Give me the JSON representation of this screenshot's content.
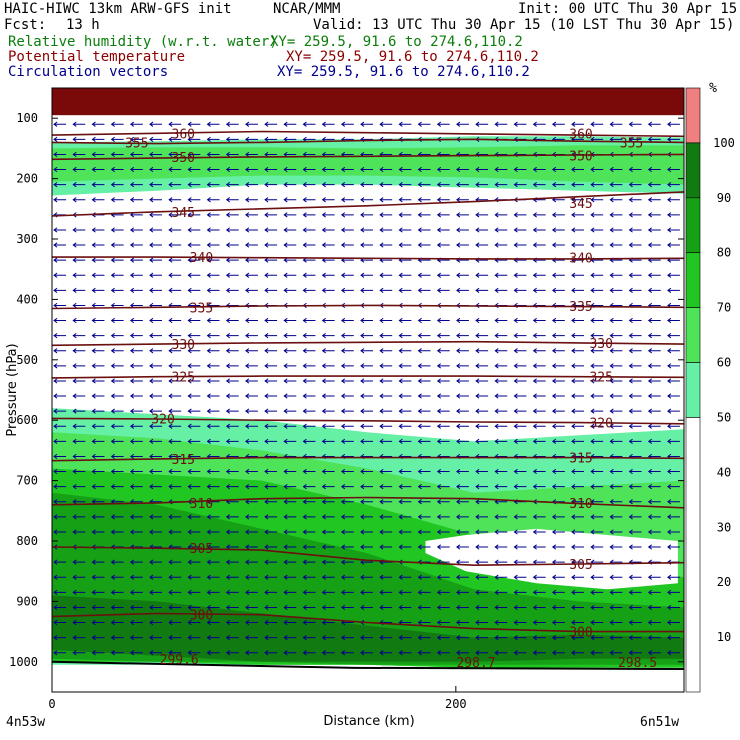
{
  "header": {
    "model": "HAIC-HIWC 13km ARW-GFS init",
    "center": "NCAR/MMM",
    "init": "Init: 00 UTC Thu 30 Apr 15",
    "fcst_label": "Fcst:",
    "fcst_value": "13 h",
    "valid": "Valid: 13 UTC Thu 30 Apr 15 (10 LST Thu 30 Apr 15)",
    "fields": [
      {
        "name": "Relative humidity (w.r.t. water)",
        "xy": "XY= 259.5, 91.6 to 274.6,110.2",
        "color": "#0b7d0b"
      },
      {
        "name": "Potential temperature",
        "xy": "XY= 259.5, 91.6 to 274.6,110.2",
        "color": "#8b0000"
      },
      {
        "name": "Circulation vectors",
        "xy": "XY= 259.5, 91.6 to 274.6,110.2",
        "color": "#00008b"
      }
    ]
  },
  "chart_data": {
    "type": "cross-section",
    "xlabel": "Distance (km)",
    "ylabel": "Pressure (hPa)",
    "xlim": [
      0,
      313
    ],
    "ylim": [
      1050,
      50
    ],
    "x_ticks": [
      0,
      200
    ],
    "y_ticks": [
      100,
      200,
      300,
      400,
      500,
      600,
      700,
      800,
      900,
      1000
    ],
    "endpoint_left": "4n53w",
    "endpoint_right": "6n51w",
    "rh_colorbar": {
      "unit": "%",
      "levels": [
        10,
        20,
        30,
        40,
        50,
        60,
        70,
        80,
        90,
        100
      ],
      "colors": {
        "50-60": "#66f0a6",
        "60-70": "#4fe35a",
        "70-80": "#22c622",
        "80-90": "#16a016",
        "90-100": "#117a11",
        "100+": "#f08080",
        "saturated_top": "#7a0a0a"
      }
    },
    "theta_isentropes": [
      {
        "value": 360,
        "pressure": [
          128,
          125,
          122,
          124,
          126,
          128,
          130
        ]
      },
      {
        "value": 355,
        "pressure": [
          140,
          142,
          140,
          137,
          135,
          138,
          140
        ]
      },
      {
        "value": 350,
        "pressure": [
          168,
          166,
          164,
          163,
          162,
          161,
          160
        ]
      },
      {
        "value": 345,
        "pressure": [
          262,
          255,
          250,
          245,
          238,
          230,
          222
        ]
      },
      {
        "value": 340,
        "pressure": [
          330,
          330,
          331,
          332,
          333,
          333,
          332
        ]
      },
      {
        "value": 335,
        "pressure": [
          415,
          413,
          411,
          410,
          411,
          412,
          413
        ]
      },
      {
        "value": 330,
        "pressure": [
          476,
          474,
          472,
          471,
          470,
          472,
          474
        ]
      },
      {
        "value": 325,
        "pressure": [
          530,
          528,
          527,
          527,
          527,
          528,
          529
        ]
      },
      {
        "value": 320,
        "pressure": [
          597,
          598,
          600,
          601,
          603,
          604,
          606
        ]
      },
      {
        "value": 315,
        "pressure": [
          667,
          664,
          662,
          662,
          662,
          662,
          663
        ]
      },
      {
        "value": 310,
        "pressure": [
          740,
          737,
          730,
          728,
          730,
          738,
          745
        ]
      },
      {
        "value": 305,
        "pressure": [
          810,
          812,
          815,
          832,
          840,
          838,
          836
        ]
      },
      {
        "value": 300,
        "pressure": [
          925,
          920,
          922,
          935,
          945,
          950,
          950
        ]
      }
    ],
    "theta_labels": [
      {
        "text": "360",
        "x": 65,
        "p": 125
      },
      {
        "text": "355",
        "x": 42,
        "p": 140
      },
      {
        "text": "360",
        "x": 262,
        "p": 125
      },
      {
        "text": "355",
        "x": 287,
        "p": 140
      },
      {
        "text": "350",
        "x": 65,
        "p": 164
      },
      {
        "text": "350",
        "x": 262,
        "p": 162
      },
      {
        "text": "345",
        "x": 65,
        "p": 255
      },
      {
        "text": "345",
        "x": 262,
        "p": 240
      },
      {
        "text": "340",
        "x": 74,
        "p": 330
      },
      {
        "text": "340",
        "x": 262,
        "p": 331
      },
      {
        "text": "335",
        "x": 74,
        "p": 413
      },
      {
        "text": "335",
        "x": 262,
        "p": 411
      },
      {
        "text": "330",
        "x": 65,
        "p": 474
      },
      {
        "text": "330",
        "x": 272,
        "p": 472
      },
      {
        "text": "325",
        "x": 65,
        "p": 528
      },
      {
        "text": "325",
        "x": 272,
        "p": 528
      },
      {
        "text": "320",
        "x": 55,
        "p": 597
      },
      {
        "text": "320",
        "x": 272,
        "p": 604
      },
      {
        "text": "315",
        "x": 65,
        "p": 664
      },
      {
        "text": "315",
        "x": 262,
        "p": 662
      },
      {
        "text": "310",
        "x": 74,
        "p": 737
      },
      {
        "text": "310",
        "x": 262,
        "p": 737
      },
      {
        "text": "305",
        "x": 74,
        "p": 812
      },
      {
        "text": "305",
        "x": 262,
        "p": 838
      },
      {
        "text": "300",
        "x": 74,
        "p": 922
      },
      {
        "text": "300",
        "x": 262,
        "p": 950
      },
      {
        "text": "299.6",
        "x": 63,
        "p": 995
      },
      {
        "text": "298.7",
        "x": 210,
        "p": 1000
      },
      {
        "text": "298.5",
        "x": 290,
        "p": 1000
      }
    ],
    "rh_shading": [
      {
        "band": "50-60",
        "top": [
          140,
          138,
          135,
          135,
          130,
          130,
          132
        ],
        "bottom": [
          228,
          220,
          210,
          210,
          215,
          220,
          225
        ]
      },
      {
        "band": "60-70",
        "top": [
          150,
          148,
          148,
          150,
          148,
          145,
          145
        ],
        "bottom": [
          205,
          200,
          195,
          195,
          198,
          205,
          210
        ]
      },
      {
        "band": "50-60",
        "top": [
          580,
          590,
          600,
          620,
          635,
          625,
          615
        ],
        "bottom": [
          1005,
          1005,
          1005,
          1005,
          1010,
          1010,
          1010
        ]
      },
      {
        "band": "60-70",
        "top": [
          620,
          630,
          650,
          680,
          720,
          710,
          700
        ],
        "bottom": [
          1000,
          1000,
          1005,
          1005,
          1010,
          1010,
          1010
        ]
      },
      {
        "band": "70-80",
        "top": [
          680,
          690,
          700,
          740,
          790,
          830,
          860
        ],
        "bottom": [
          1000,
          1000,
          1005,
          1005,
          1010,
          1010,
          1010
        ]
      },
      {
        "band": "80-90",
        "top": [
          720,
          740,
          780,
          820,
          880,
          900,
          910
        ],
        "bottom": [
          995,
          1000,
          1000,
          1005,
          1005,
          1005,
          1005
        ]
      },
      {
        "band": "90-100",
        "top": [
          890,
          900,
          920,
          940,
          960,
          955,
          960
        ],
        "bottom": [
          980,
          990,
          1000,
          1000,
          1000,
          995,
          995
        ]
      }
    ],
    "dry_slot": {
      "band": "<50",
      "top": [
        800,
        790,
        780,
        790,
        800
      ],
      "bottom": [
        820,
        850,
        870,
        880,
        870
      ],
      "x": [
        185,
        205,
        240,
        275,
        310
      ]
    },
    "wind_vectors": "easterly flow (arrows pointing left) throughout the section"
  }
}
